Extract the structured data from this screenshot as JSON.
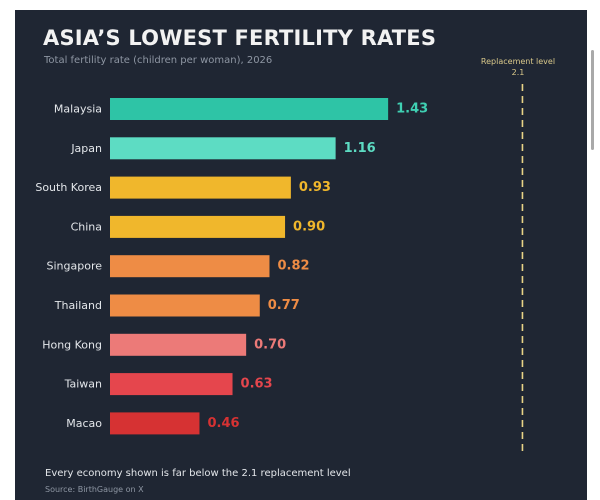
{
  "chart_data": {
    "type": "bar",
    "orientation": "horizontal",
    "title": "ASIA’S LOWEST FERTILITY RATES",
    "subtitle": "Total fertility rate (children per woman), 2026",
    "categories": [
      "Malaysia",
      "Japan",
      "South Korea",
      "China",
      "Singapore",
      "Thailand",
      "Hong Kong",
      "Taiwan",
      "Macao"
    ],
    "values": [
      1.43,
      1.16,
      0.93,
      0.9,
      0.82,
      0.77,
      0.7,
      0.63,
      0.46
    ],
    "value_labels": [
      "1.43",
      "1.16",
      "0.93",
      "0.90",
      "0.82",
      "0.77",
      "0.70",
      "0.63",
      "0.46"
    ],
    "bar_colors": [
      "#2ec4a6",
      "#5ddcc3",
      "#f0b72c",
      "#f0b72c",
      "#ee8c45",
      "#ee8c45",
      "#ec7a78",
      "#e5464d",
      "#d63233"
    ],
    "label_colors": [
      "#3fd0b3",
      "#5ddcc3",
      "#f0b72c",
      "#f0b72c",
      "#ee8c45",
      "#ee8c45",
      "#ec7a78",
      "#e5464d",
      "#d63233"
    ],
    "reference_line": {
      "value": 2.1,
      "label": "Replacement level",
      "value_label": "2.1",
      "style": "dashed",
      "color": "#e8d387"
    },
    "xlim": [
      0,
      2.1
    ],
    "grid": false,
    "legend": "none",
    "background": "#1f2633"
  },
  "footnote": "Every economy shown is far below the 2.1 replacement level",
  "source": "Source: BirthGauge on X"
}
